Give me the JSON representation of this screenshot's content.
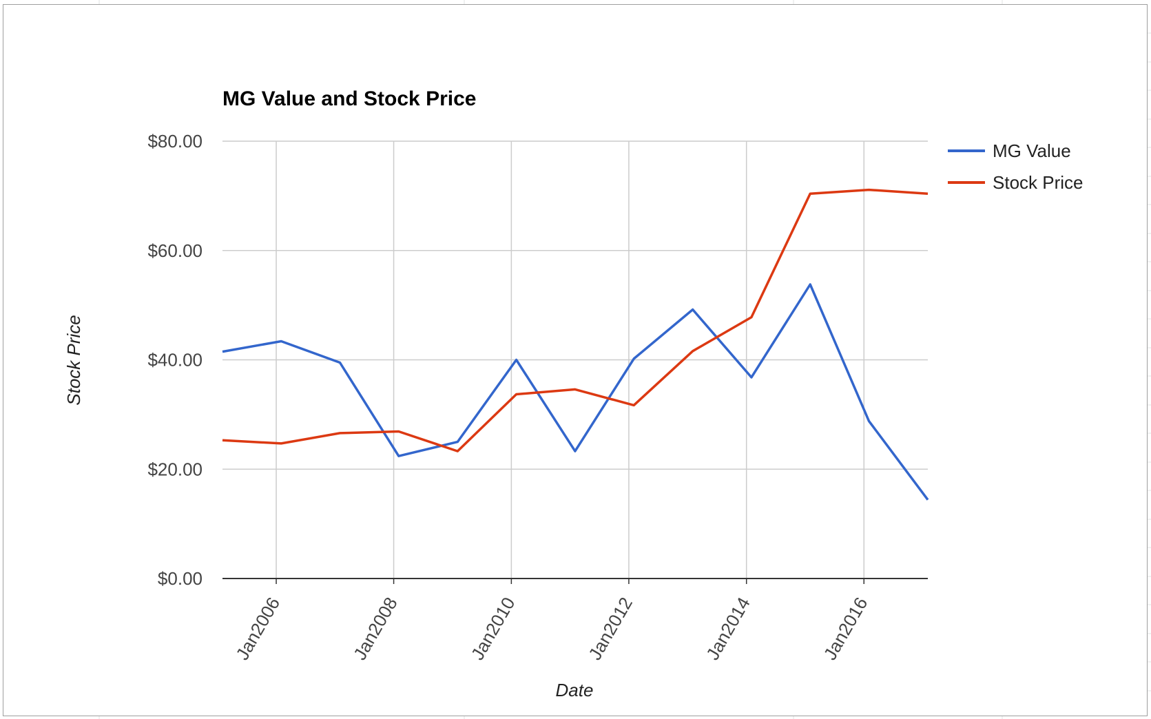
{
  "chart_data": {
    "type": "line",
    "title": "MG Value and Stock Price",
    "xlabel": "Date",
    "ylabel": "Stock Price",
    "x_tick_labels": [
      "Jan2006",
      "Jan2008",
      "Jan2010",
      "Jan2012",
      "Jan2014",
      "Jan2016"
    ],
    "y_tick_labels": [
      "$0.00",
      "$20.00",
      "$40.00",
      "$60.00",
      "$80.00"
    ],
    "ylim": [
      0,
      80
    ],
    "grid": true,
    "legend_position": "right",
    "x": [
      "2005-02",
      "2006-02",
      "2007-02",
      "2008-02",
      "2009-02",
      "2010-02",
      "2011-02",
      "2012-02",
      "2013-02",
      "2014-02",
      "2015-02",
      "2016-02",
      "2017-02"
    ],
    "series": [
      {
        "name": "MG Value",
        "color": "#3366cc",
        "values": [
          41.5,
          43.4,
          39.5,
          22.4,
          25.0,
          40.0,
          23.3,
          40.2,
          49.2,
          36.8,
          53.8,
          28.8,
          14.4
        ]
      },
      {
        "name": "Stock Price",
        "color": "#dc3912",
        "values": [
          25.3,
          24.7,
          26.6,
          26.9,
          23.3,
          33.7,
          34.6,
          31.7,
          41.6,
          47.8,
          70.4,
          71.1,
          70.4
        ]
      }
    ]
  }
}
